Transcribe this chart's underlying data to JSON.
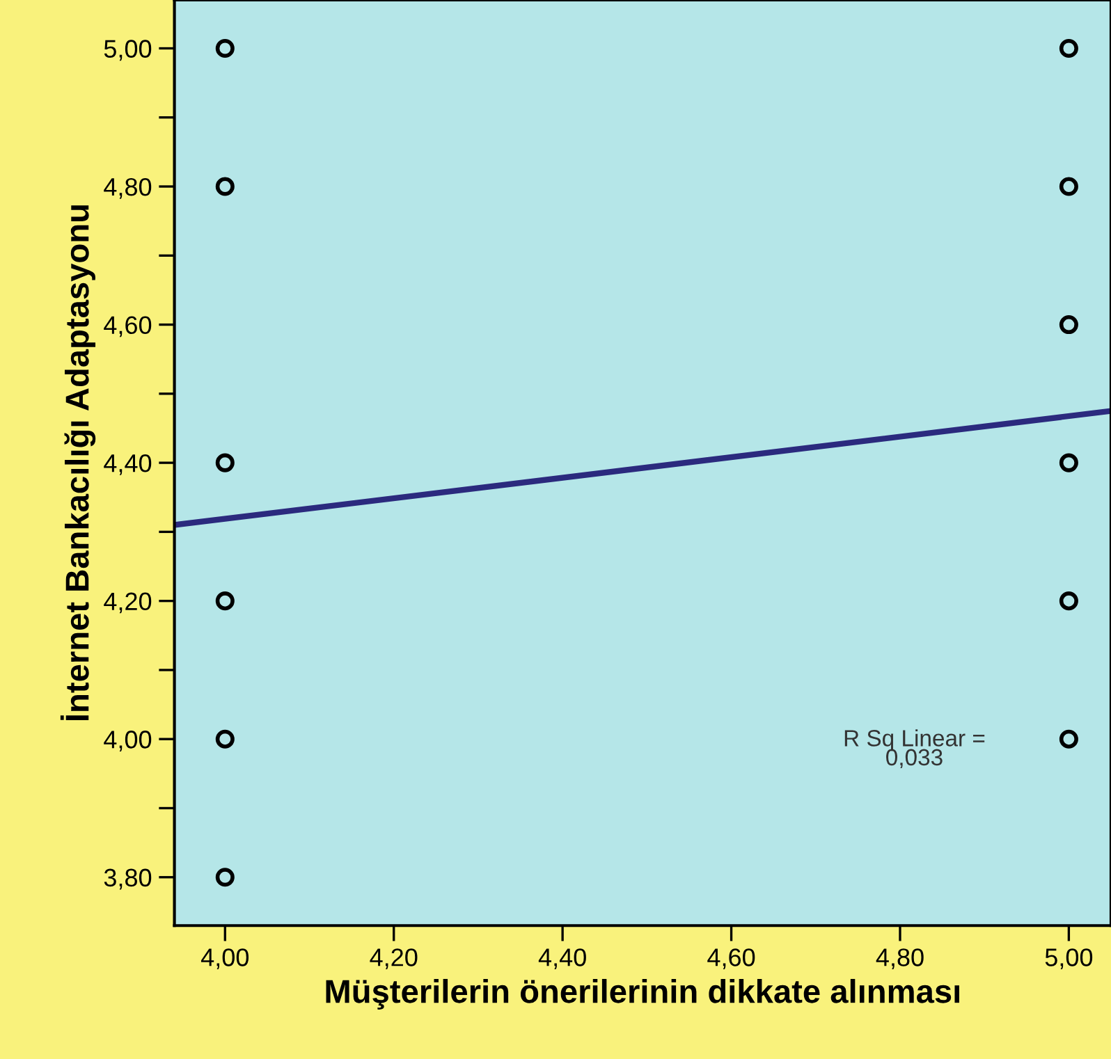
{
  "chart_data": {
    "type": "scatter",
    "xlabel": "Müşterilerin önerilerinin dikkate alınması",
    "ylabel": "İnternet Bankacılığı Adaptasyonu",
    "annotations": [
      "R Sq Linear =\n0,033"
    ],
    "series": [
      {
        "color": "#000000",
        "marker": "circle",
        "x": [
          4,
          4,
          4,
          4,
          4,
          4,
          5,
          5,
          5,
          5,
          5,
          5
        ],
        "values": [
          5.0,
          4.8,
          4.4,
          4.2,
          4.0,
          3.8,
          5.0,
          4.8,
          4.6,
          4.4,
          4.2,
          4.0
        ]
      },
      {
        "type": "line",
        "color": "#2b2a7e",
        "line_style": "solid",
        "x": [
          3.94,
          5.05
        ],
        "values": [
          4.31,
          4.475
        ]
      }
    ],
    "xlim": [
      3.94,
      5.05
    ],
    "ylim": [
      3.73,
      5.07
    ],
    "xticks": [
      {
        "value": 4.0,
        "label": "4,00"
      },
      {
        "value": 4.2,
        "label": "4,20"
      },
      {
        "value": 4.4,
        "label": "4,40"
      },
      {
        "value": 4.6,
        "label": "4,60"
      },
      {
        "value": 4.8,
        "label": "4,80"
      },
      {
        "value": 5.0,
        "label": "5,00"
      }
    ],
    "yticks": [
      {
        "value": 3.8,
        "label": "3,80"
      },
      {
        "value": 3.9,
        "label": null
      },
      {
        "value": 4.0,
        "label": "4,00"
      },
      {
        "value": 4.1,
        "label": null
      },
      {
        "value": 4.2,
        "label": "4,20"
      },
      {
        "value": 4.3,
        "label": null
      },
      {
        "value": 4.4,
        "label": "4,40"
      },
      {
        "value": 4.5,
        "label": null
      },
      {
        "value": 4.6,
        "label": "4,60"
      },
      {
        "value": 4.7,
        "label": null
      },
      {
        "value": 4.8,
        "label": "4,80"
      },
      {
        "value": 4.9,
        "label": null
      },
      {
        "value": 5.0,
        "label": "5,00"
      }
    ],
    "grid": false,
    "legend": false
  }
}
